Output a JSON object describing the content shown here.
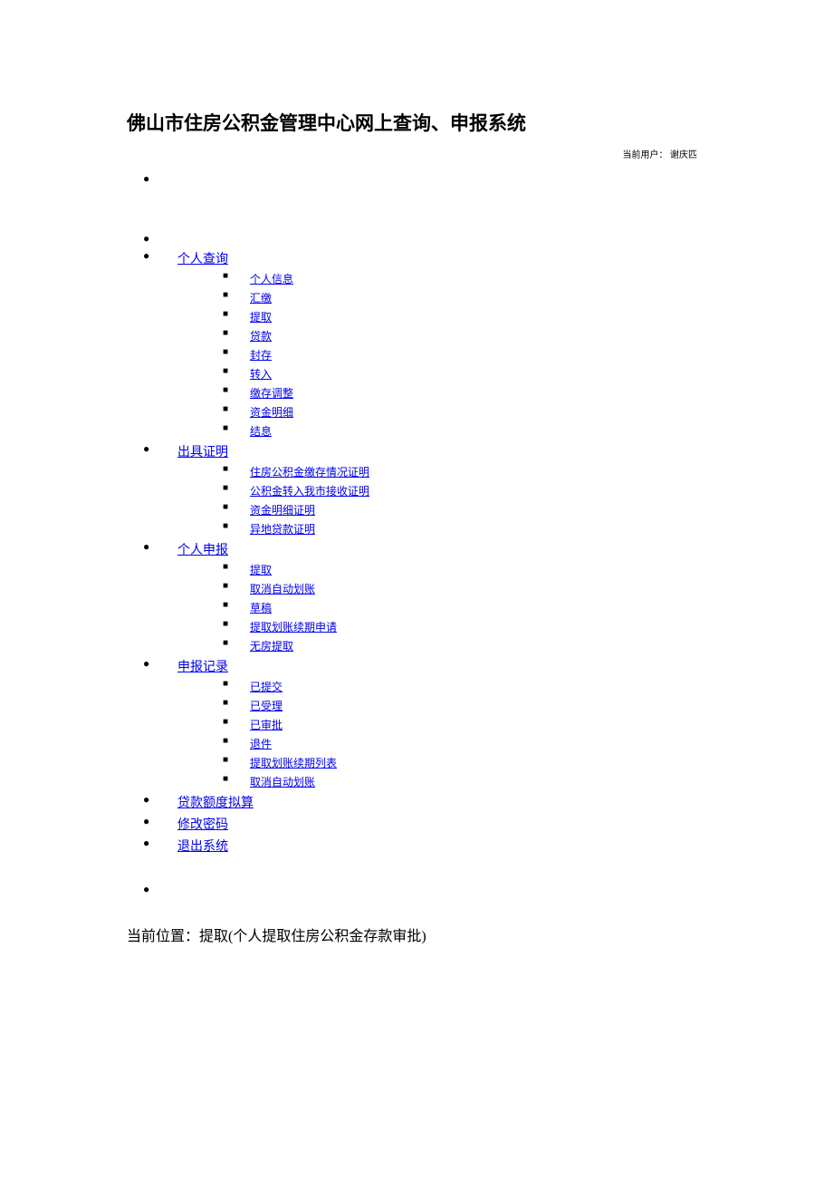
{
  "title": "佛山市住房公积金管理中心网上查询、申报系统",
  "user_label": "当前用户：",
  "user_name": "谢庆匹",
  "menu": [
    {
      "label": "个人查询",
      "items": [
        "个人信息",
        "汇缴",
        "提取",
        "贷款",
        "封存",
        "转入",
        "缴存调整",
        "资金明细",
        "结息"
      ]
    },
    {
      "label": "出具证明",
      "items": [
        "住房公积金缴存情况证明",
        "公积金转入我市接收证明",
        "资金明细证明",
        "异地贷款证明"
      ]
    },
    {
      "label": "个人申报",
      "items": [
        "提取",
        "取消自动划账",
        "草稿",
        "提取划账续期申请",
        "无房提取"
      ]
    },
    {
      "label": "申报记录",
      "items": [
        "已提交",
        "已受理",
        "已审批",
        "退件",
        "提取划账续期列表",
        "取消自动划账"
      ]
    },
    {
      "label": "贷款额度拟算",
      "items": []
    },
    {
      "label": "修改密码",
      "items": []
    },
    {
      "label": "退出系统",
      "items": []
    }
  ],
  "breadcrumb_label": "当前位置：",
  "breadcrumb_value": "提取(个人提取住房公积金存款审批)",
  "colors": {
    "link": "#0000ee",
    "text": "#000000",
    "bg": "#ffffff"
  }
}
